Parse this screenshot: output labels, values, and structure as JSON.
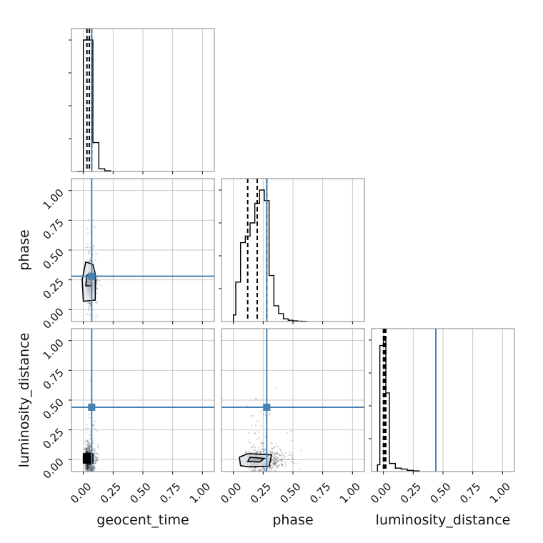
{
  "chart_data": {
    "type": "scatter",
    "variant": "corner-plot",
    "parameters": [
      "geocent_time",
      "phase",
      "luminosity_distance"
    ],
    "axis_range": [
      -0.1,
      1.1
    ],
    "ticks": [
      0.0,
      0.25,
      0.5,
      0.75,
      1.0
    ],
    "tick_labels": [
      "0.00",
      "0.25",
      "0.50",
      "0.75",
      "1.00"
    ],
    "truths": {
      "geocent_time": 0.07,
      "phase": 0.28,
      "luminosity_distance": 0.44
    },
    "grid": true,
    "histograms": {
      "geocent_time": {
        "bin_edges": [
          -0.05,
          0.0,
          0.03,
          0.08,
          0.13,
          0.18,
          0.23
        ],
        "counts": [
          0,
          1.0,
          1.0,
          0.22,
          0.02,
          0.005
        ],
        "quantiles": [
          0.03,
          0.05,
          0.07
        ]
      },
      "phase": {
        "bin_edges": [
          0.0,
          0.02,
          0.06,
          0.1,
          0.14,
          0.18,
          0.22,
          0.26,
          0.3,
          0.34,
          0.38,
          0.42,
          0.46,
          0.5,
          0.54,
          0.58,
          0.62
        ],
        "counts": [
          0.05,
          0.3,
          0.6,
          0.65,
          0.75,
          0.9,
          1.0,
          0.92,
          0.35,
          0.12,
          0.06,
          0.02,
          0.01,
          0.005,
          0.002,
          0
        ],
        "quantiles": [
          0.12,
          0.2,
          0.28
        ]
      },
      "luminosity_distance": {
        "bin_edges": [
          -0.05,
          -0.03,
          0.0,
          0.02,
          0.05,
          0.1,
          0.15,
          0.2,
          0.25,
          0.3
        ],
        "counts": [
          0.05,
          0.93,
          0.97,
          0.58,
          0.06,
          0.025,
          0.018,
          0.009,
          0.005
        ],
        "quantiles": [
          0.0,
          0.01,
          0.02
        ]
      }
    },
    "samples_2d": [
      {
        "x": "geocent_time",
        "y": "phase",
        "center": [
          0.05,
          0.22
        ],
        "spread": [
          0.03,
          0.11
        ],
        "count": 650
      },
      {
        "x": "geocent_time",
        "y": "luminosity_distance",
        "center": [
          0.04,
          0.0
        ],
        "spread": [
          0.03,
          0.12
        ],
        "count": 650
      },
      {
        "x": "phase",
        "y": "luminosity_distance",
        "center": [
          0.2,
          0.0
        ],
        "spread": [
          0.12,
          0.1
        ],
        "count": 650
      }
    ],
    "contours": [
      {
        "x": "geocent_time",
        "y": "phase",
        "outer": [
          [
            0.0,
            0.07
          ],
          [
            0.1,
            0.08
          ],
          [
            0.1,
            0.3
          ],
          [
            0.08,
            0.38
          ],
          [
            0.02,
            0.4
          ],
          [
            -0.01,
            0.25
          ]
        ],
        "inner": [
          [
            0.02,
            0.2
          ],
          [
            0.07,
            0.2
          ],
          [
            0.07,
            0.28
          ],
          [
            0.03,
            0.29
          ]
        ]
      },
      {
        "x": "phase",
        "y": "luminosity_distance",
        "outer": [
          [
            0.06,
            -0.05
          ],
          [
            0.12,
            -0.06
          ],
          [
            0.3,
            -0.055
          ],
          [
            0.32,
            0.04
          ],
          [
            0.12,
            0.05
          ],
          [
            0.05,
            0.02
          ]
        ],
        "inner": [
          [
            0.12,
            -0.015
          ],
          [
            0.22,
            -0.02
          ],
          [
            0.26,
            0.01
          ],
          [
            0.14,
            0.02
          ]
        ]
      },
      {
        "x": "geocent_time",
        "y": "luminosity_distance",
        "outer": [
          [
            0.0,
            -0.03
          ],
          [
            0.08,
            -0.03
          ],
          [
            0.08,
            0.05
          ],
          [
            0.0,
            0.05
          ]
        ],
        "inner": []
      }
    ]
  }
}
